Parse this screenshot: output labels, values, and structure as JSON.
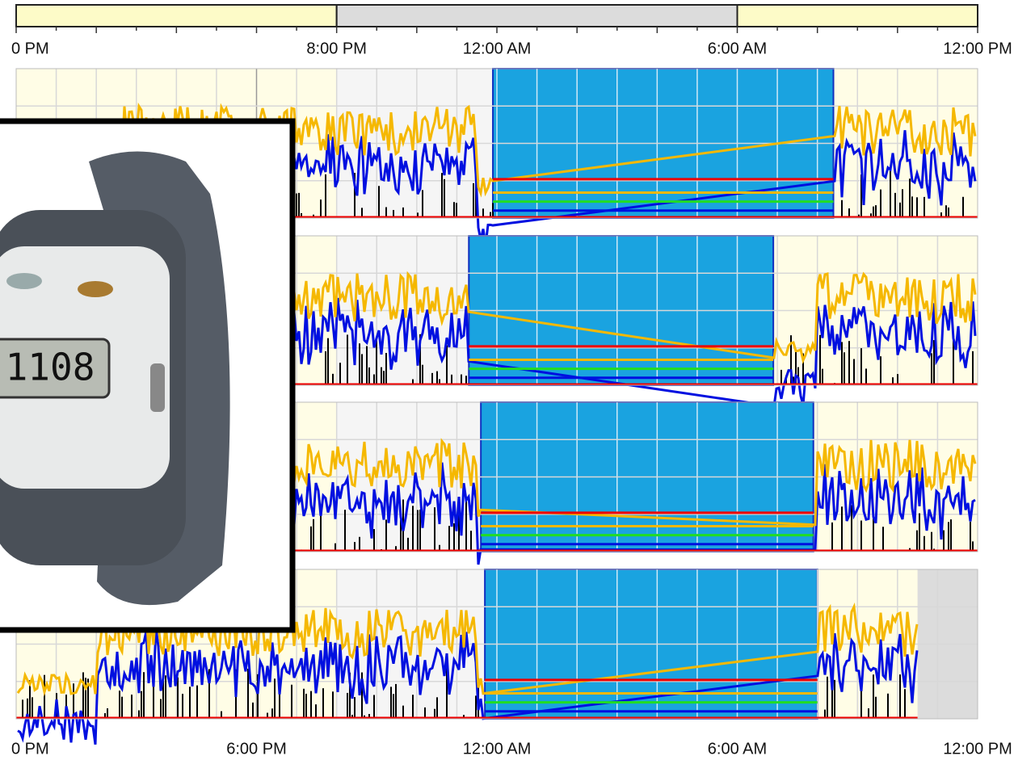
{
  "chart_data": {
    "type": "actigram",
    "xlim": [
      0,
      24
    ],
    "top_xticks": [
      {
        "value": 0,
        "label": "0 PM"
      },
      {
        "value": 8,
        "label": "8:00 PM"
      },
      {
        "value": 12,
        "label": "12:00 AM"
      },
      {
        "value": 18,
        "label": "6:00 AM"
      },
      {
        "value": 24,
        "label": "12:00 PM"
      }
    ],
    "xticks": [
      {
        "value": 0,
        "label": "0 PM"
      },
      {
        "value": 6,
        "label": "6:00 PM"
      },
      {
        "value": 12,
        "label": "12:00 AM"
      },
      {
        "value": 18,
        "label": "6:00 AM"
      },
      {
        "value": 24,
        "label": "12:00 PM"
      }
    ],
    "light_bar": [
      {
        "start": 0,
        "end": 8,
        "color": "#fdfbc8"
      },
      {
        "start": 8,
        "end": 18,
        "color": "#dcdcdc"
      },
      {
        "start": 18,
        "end": 24,
        "color": "#fdfbc8"
      }
    ],
    "rest_color": "#1aa3e0",
    "panels": [
      {
        "rest_start": 11.9,
        "rest_end": 20.4
      },
      {
        "rest_start": 11.3,
        "rest_end": 18.9
      },
      {
        "rest_start": 11.6,
        "rest_end": 19.9
      },
      {
        "rest_start": 11.7,
        "rest_end": 20.0,
        "no_data_start": 22.5
      }
    ],
    "grid": true
  },
  "watch_display": "1108"
}
